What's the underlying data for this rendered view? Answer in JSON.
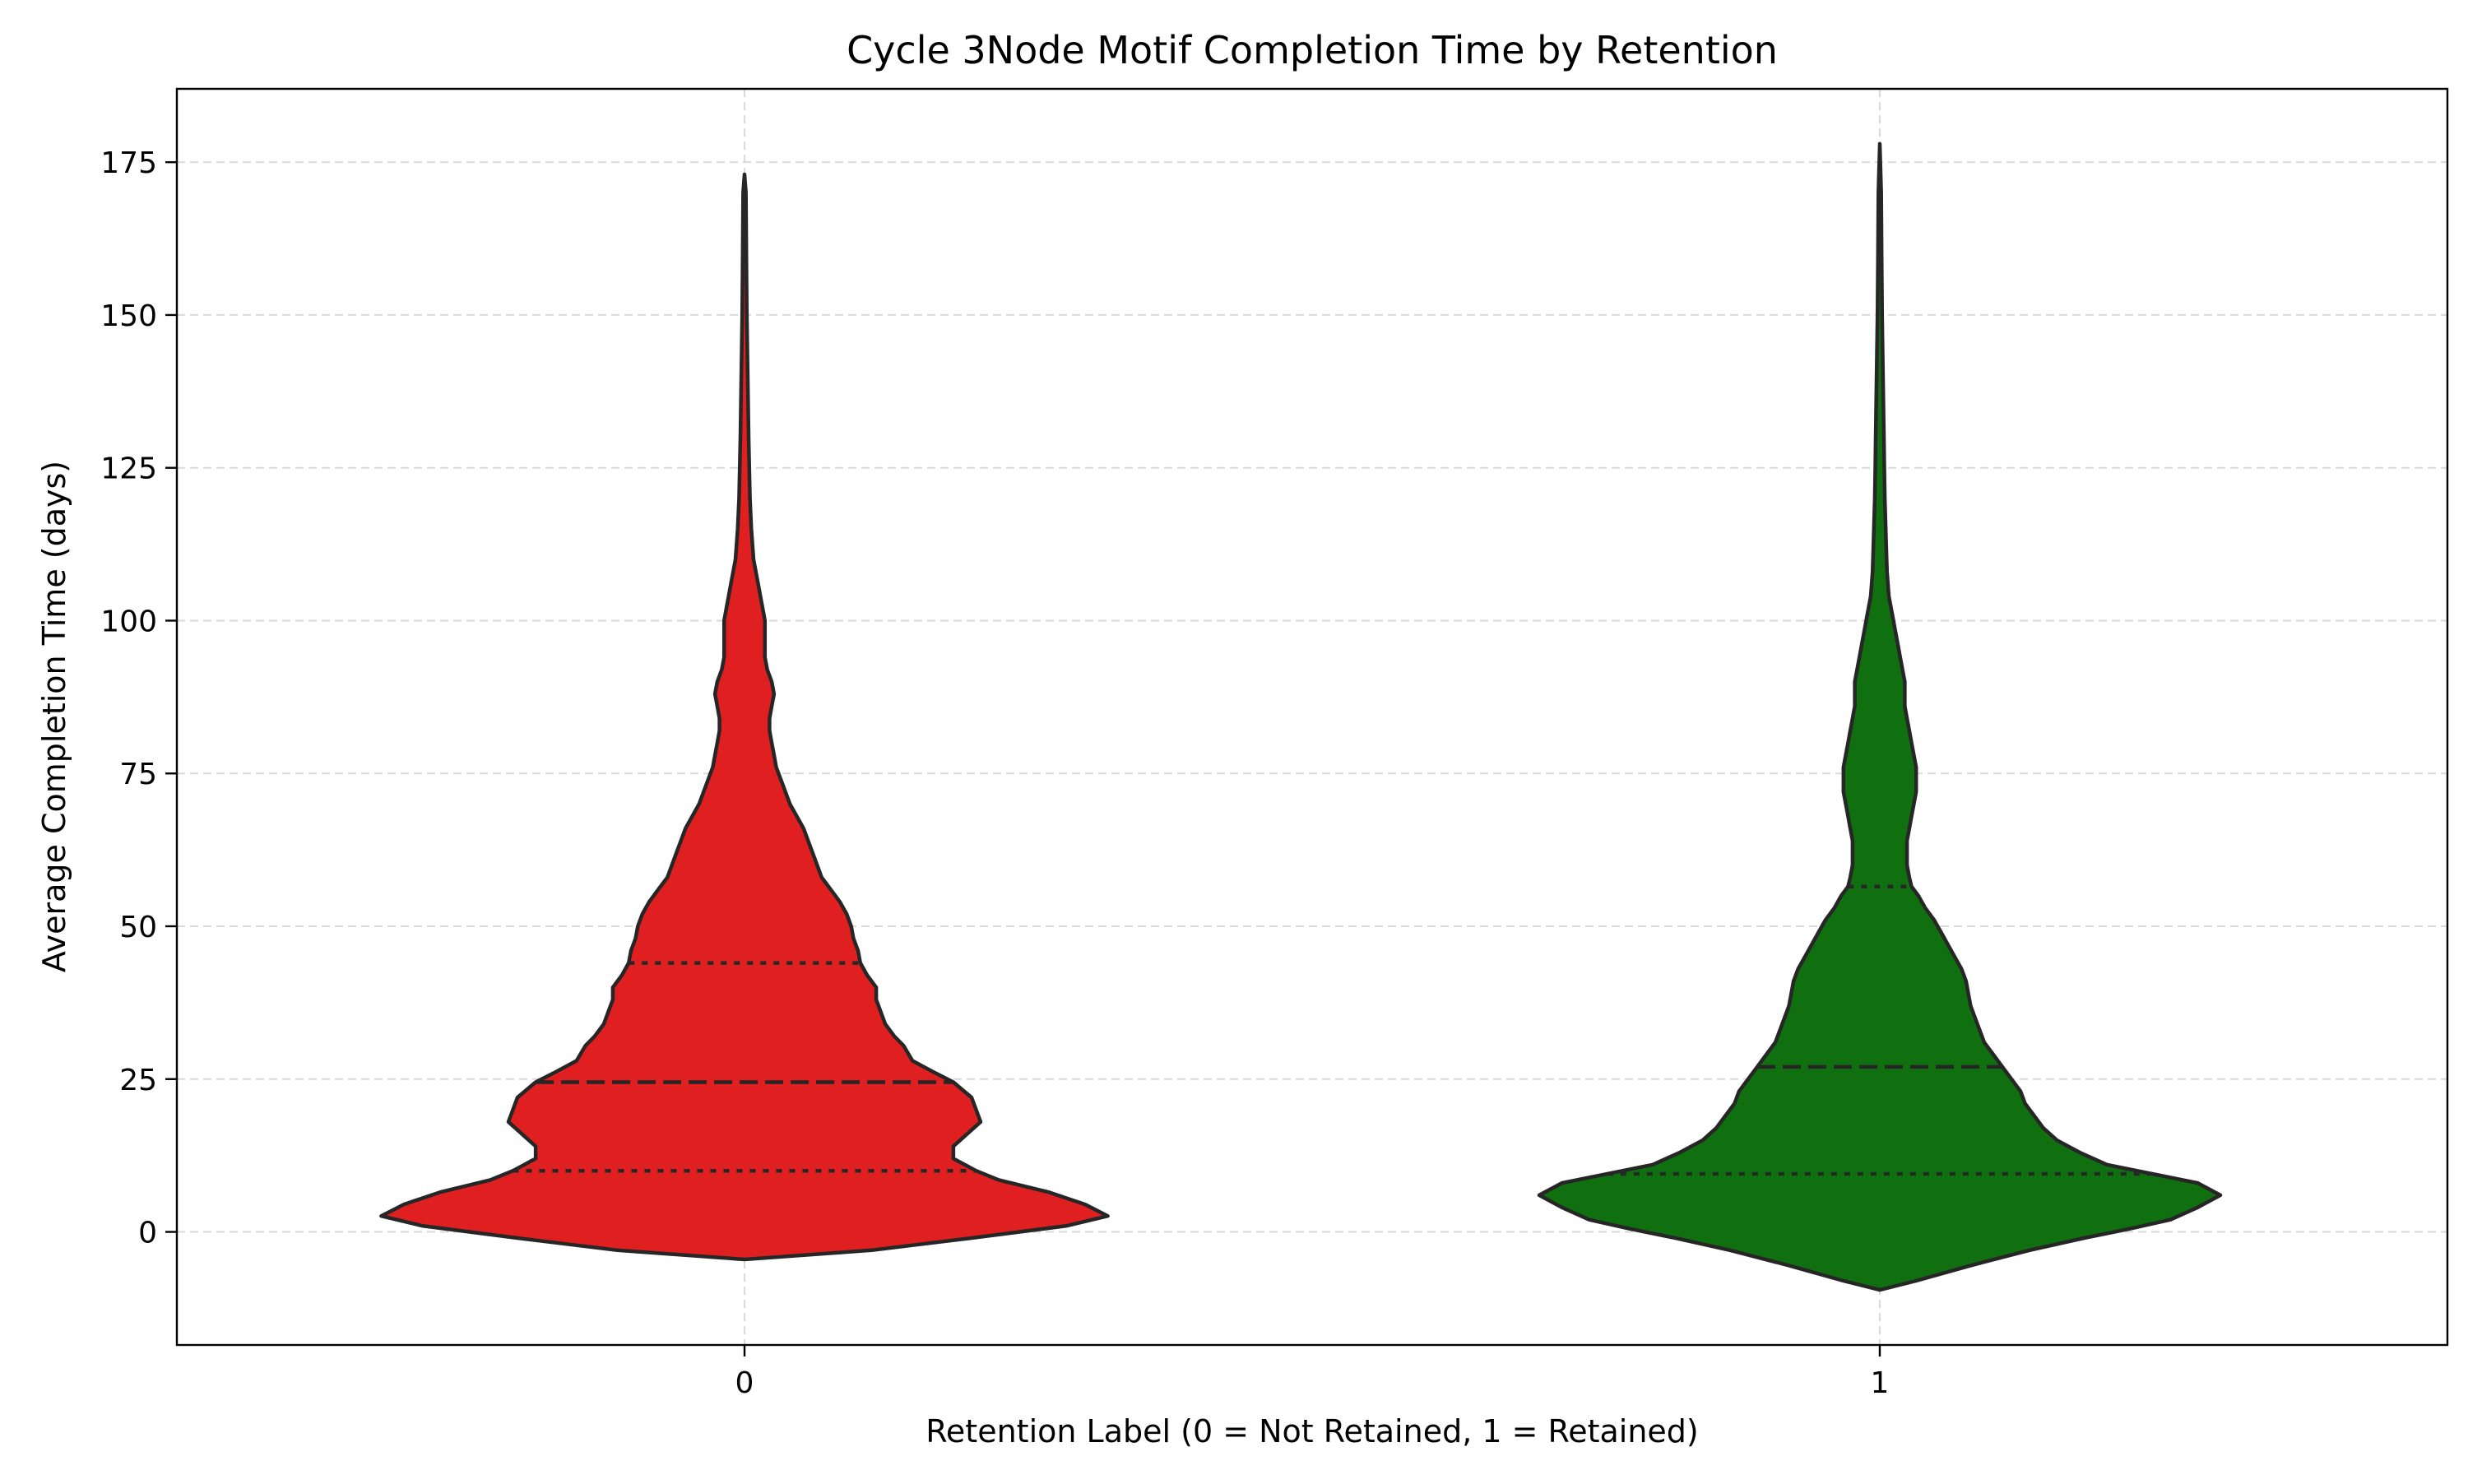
{
  "chart_data": {
    "type": "violin",
    "title": "Cycle 3Node Motif Completion Time by Retention",
    "xlabel": "Retention Label (0 = Not Retained, 1 = Retained)",
    "ylabel": "Average Completion Time (days)",
    "categories": [
      "0",
      "1"
    ],
    "ylim": [
      -18.5,
      187
    ],
    "yticks": [
      0,
      25,
      50,
      75,
      100,
      125,
      150,
      175
    ],
    "grid": true,
    "inner": "quartile",
    "series": [
      {
        "category": "0",
        "color": "#e02020",
        "min": -4.5,
        "max": 173,
        "quartiles": [
          10,
          24.5,
          44
        ],
        "profile": [
          [
            -4.5,
            0.0
          ],
          [
            -3,
            0.28
          ],
          [
            -1,
            0.5
          ],
          [
            1,
            0.71
          ],
          [
            2.6,
            0.8
          ],
          [
            4.5,
            0.75
          ],
          [
            6.5,
            0.67
          ],
          [
            8.5,
            0.56
          ],
          [
            10,
            0.51
          ],
          [
            12,
            0.46
          ],
          [
            14,
            0.46
          ],
          [
            16,
            0.49
          ],
          [
            18,
            0.52
          ],
          [
            20,
            0.51
          ],
          [
            22,
            0.5
          ],
          [
            24.5,
            0.46
          ],
          [
            26,
            0.42
          ],
          [
            28,
            0.37
          ],
          [
            30.5,
            0.35
          ],
          [
            32,
            0.33
          ],
          [
            34,
            0.31
          ],
          [
            36,
            0.3
          ],
          [
            38,
            0.29
          ],
          [
            40,
            0.29
          ],
          [
            42,
            0.27
          ],
          [
            44,
            0.255
          ],
          [
            46,
            0.25
          ],
          [
            48,
            0.24
          ],
          [
            50,
            0.235
          ],
          [
            52,
            0.225
          ],
          [
            54,
            0.21
          ],
          [
            56,
            0.19
          ],
          [
            58,
            0.17
          ],
          [
            60,
            0.16
          ],
          [
            62,
            0.15
          ],
          [
            64,
            0.14
          ],
          [
            66,
            0.13
          ],
          [
            68,
            0.115
          ],
          [
            70,
            0.1
          ],
          [
            72,
            0.09
          ],
          [
            74,
            0.08
          ],
          [
            76,
            0.07
          ],
          [
            78,
            0.065
          ],
          [
            80,
            0.06
          ],
          [
            82,
            0.055
          ],
          [
            84,
            0.055
          ],
          [
            86,
            0.06
          ],
          [
            88,
            0.065
          ],
          [
            90,
            0.06
          ],
          [
            92,
            0.05
          ],
          [
            94,
            0.045
          ],
          [
            96,
            0.045
          ],
          [
            98,
            0.045
          ],
          [
            100,
            0.045
          ],
          [
            102,
            0.04
          ],
          [
            104,
            0.035
          ],
          [
            106,
            0.03
          ],
          [
            108,
            0.025
          ],
          [
            110,
            0.02
          ],
          [
            115,
            0.015
          ],
          [
            120,
            0.012
          ],
          [
            130,
            0.009
          ],
          [
            140,
            0.007
          ],
          [
            150,
            0.005
          ],
          [
            160,
            0.004
          ],
          [
            170,
            0.003
          ],
          [
            173,
            0.0
          ]
        ]
      },
      {
        "category": "1",
        "color": "#107010",
        "min": -9.5,
        "max": 178,
        "quartiles": [
          9.5,
          27,
          56.5
        ],
        "profile": [
          [
            -9.5,
            0.0
          ],
          [
            -8,
            0.08
          ],
          [
            -5.5,
            0.2
          ],
          [
            -3,
            0.33
          ],
          [
            -1,
            0.45
          ],
          [
            0.5,
            0.55
          ],
          [
            2,
            0.64
          ],
          [
            4,
            0.7
          ],
          [
            6,
            0.75
          ],
          [
            8,
            0.7
          ],
          [
            9.5,
            0.6
          ],
          [
            11,
            0.5
          ],
          [
            13,
            0.44
          ],
          [
            15,
            0.39
          ],
          [
            17,
            0.36
          ],
          [
            19,
            0.34
          ],
          [
            21,
            0.32
          ],
          [
            23,
            0.31
          ],
          [
            25,
            0.29
          ],
          [
            27,
            0.27
          ],
          [
            29,
            0.25
          ],
          [
            31,
            0.23
          ],
          [
            33,
            0.22
          ],
          [
            35,
            0.21
          ],
          [
            37,
            0.2
          ],
          [
            39,
            0.195
          ],
          [
            41,
            0.19
          ],
          [
            43,
            0.18
          ],
          [
            45,
            0.165
          ],
          [
            47,
            0.15
          ],
          [
            49,
            0.135
          ],
          [
            51,
            0.12
          ],
          [
            53,
            0.1
          ],
          [
            55,
            0.085
          ],
          [
            56.5,
            0.07
          ],
          [
            58,
            0.065
          ],
          [
            60,
            0.06
          ],
          [
            62,
            0.06
          ],
          [
            64,
            0.06
          ],
          [
            66,
            0.065
          ],
          [
            68,
            0.07
          ],
          [
            70,
            0.075
          ],
          [
            72,
            0.08
          ],
          [
            74,
            0.08
          ],
          [
            76,
            0.08
          ],
          [
            78,
            0.075
          ],
          [
            80,
            0.07
          ],
          [
            82,
            0.065
          ],
          [
            84,
            0.06
          ],
          [
            86,
            0.055
          ],
          [
            88,
            0.055
          ],
          [
            90,
            0.055
          ],
          [
            92,
            0.05
          ],
          [
            94,
            0.045
          ],
          [
            96,
            0.04
          ],
          [
            98,
            0.035
          ],
          [
            100,
            0.03
          ],
          [
            102,
            0.025
          ],
          [
            104,
            0.02
          ],
          [
            106,
            0.018
          ],
          [
            108,
            0.016
          ],
          [
            110,
            0.015
          ],
          [
            115,
            0.013
          ],
          [
            120,
            0.011
          ],
          [
            125,
            0.01
          ],
          [
            130,
            0.009
          ],
          [
            140,
            0.007
          ],
          [
            150,
            0.005
          ],
          [
            160,
            0.004
          ],
          [
            170,
            0.003
          ],
          [
            178,
            0.0
          ]
        ]
      }
    ]
  }
}
